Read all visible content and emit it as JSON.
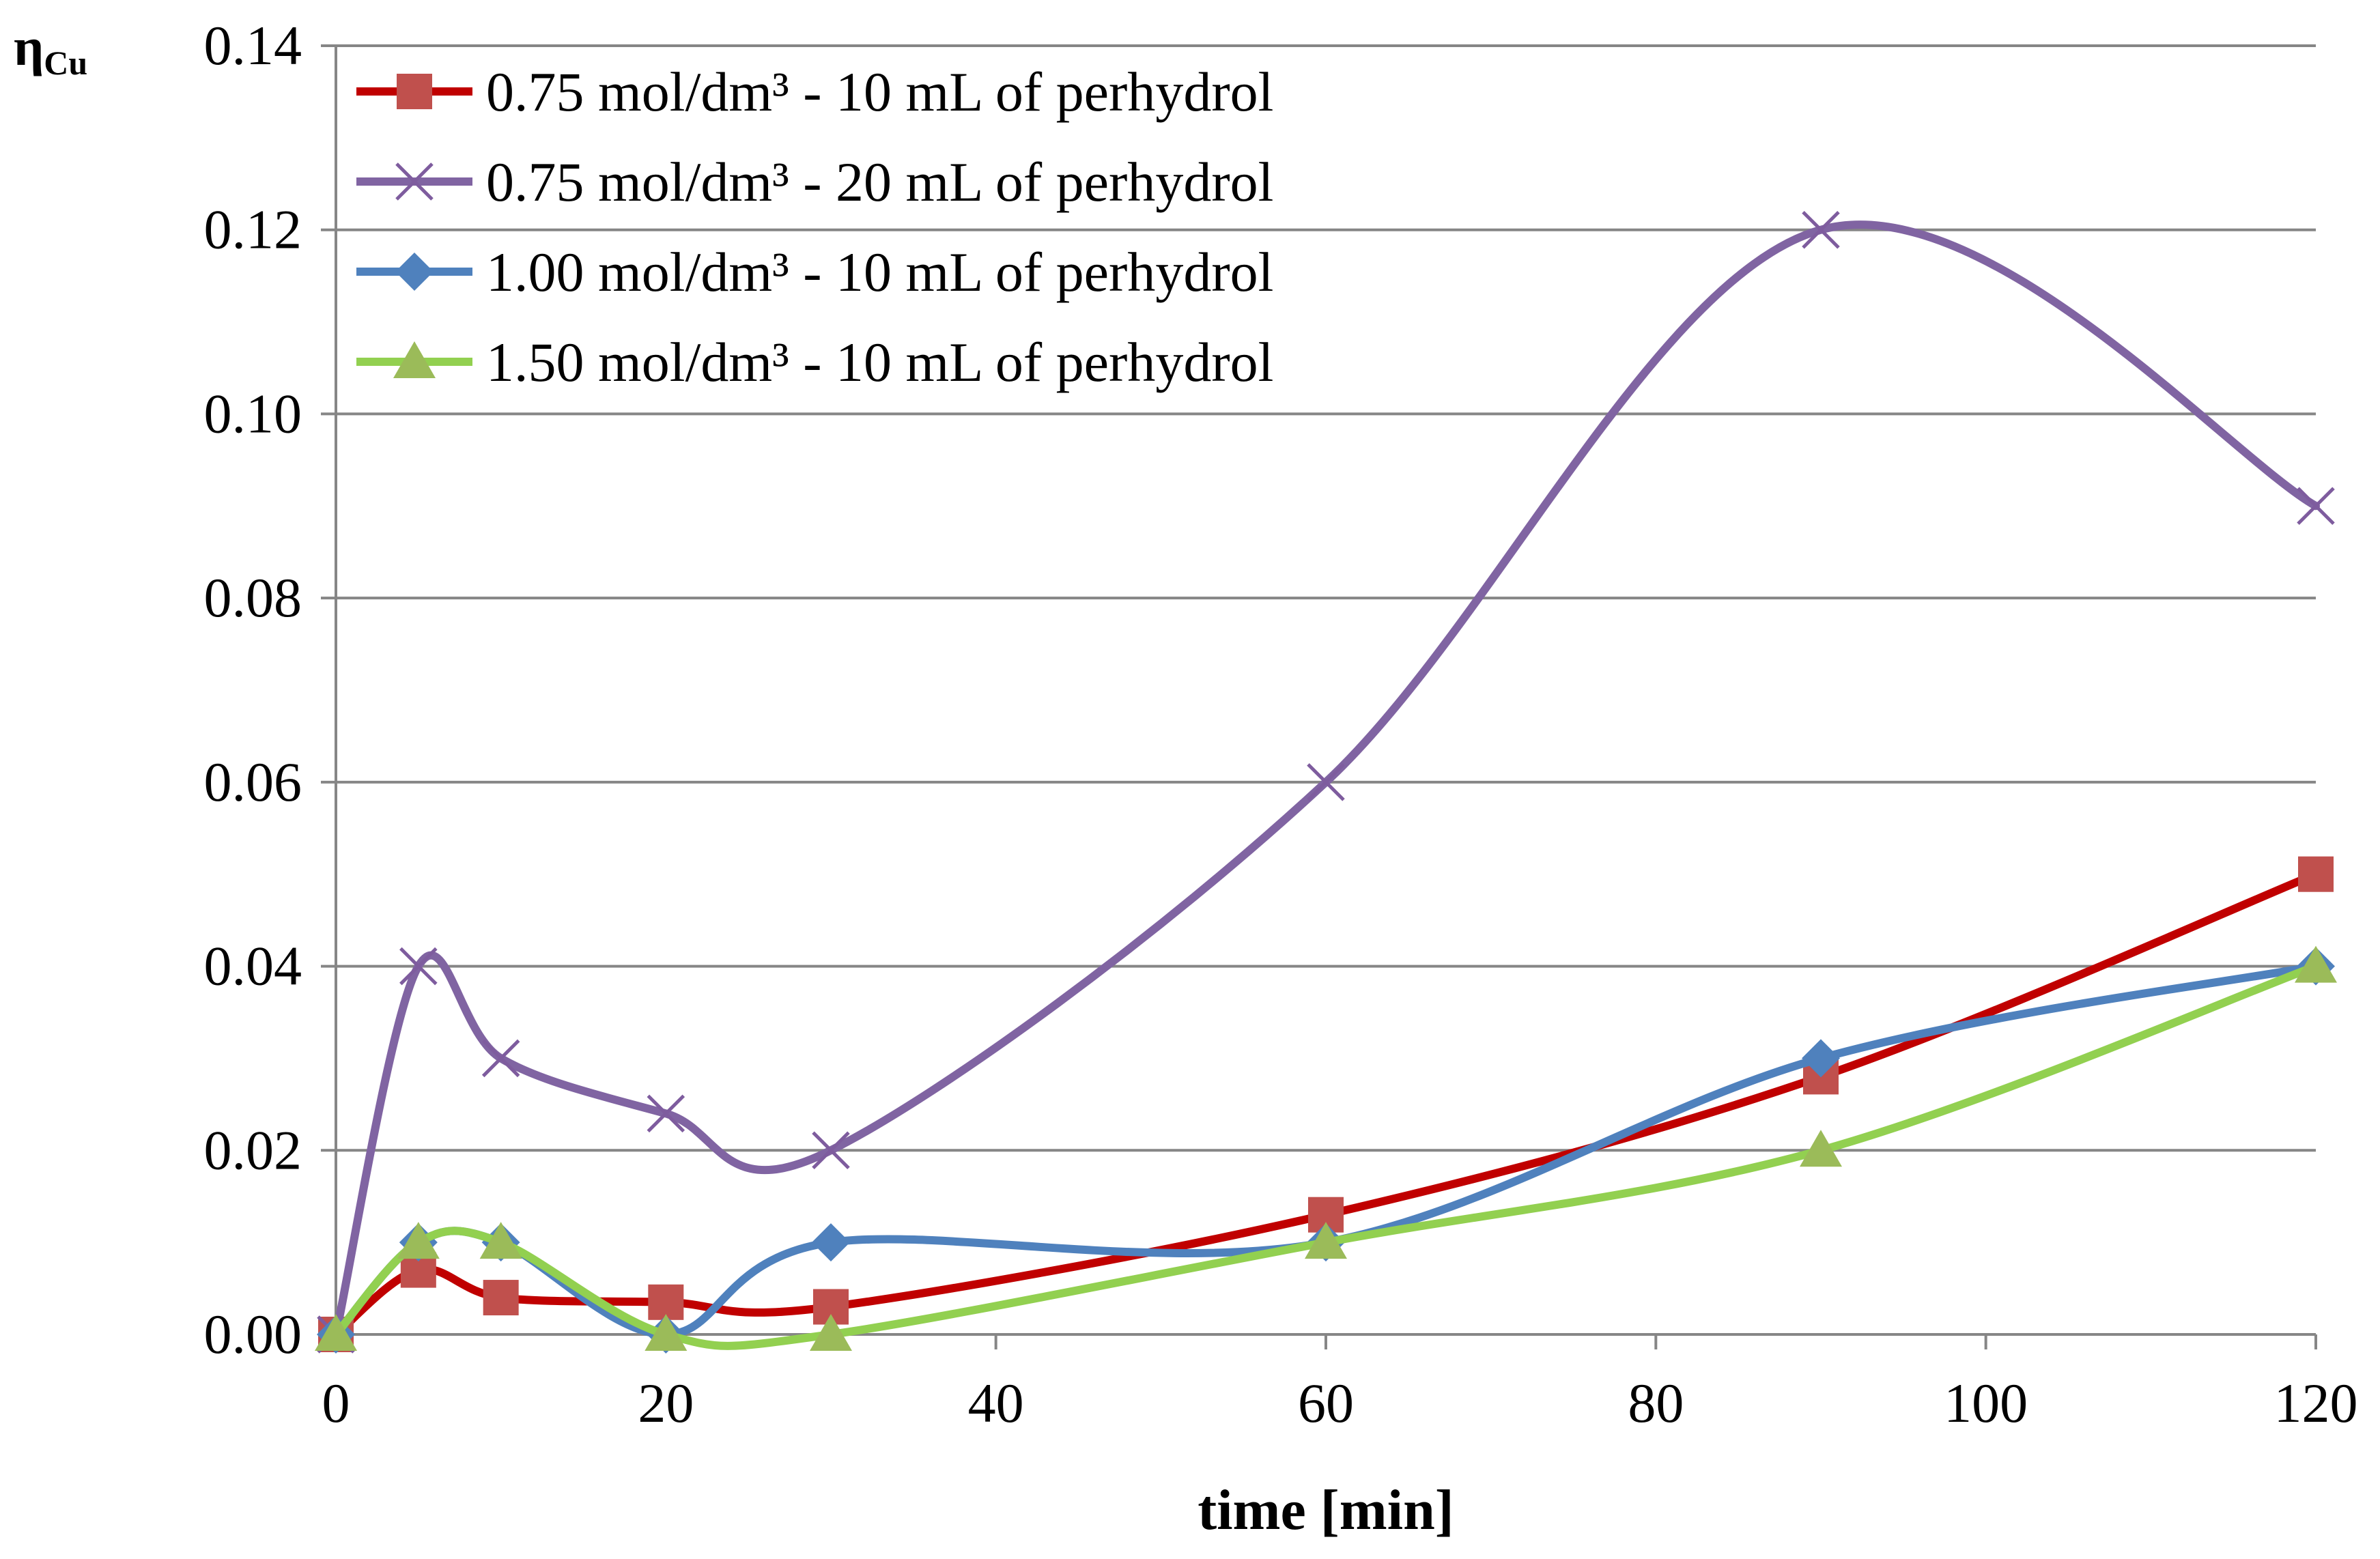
{
  "chart_data": {
    "type": "line",
    "smoothed": true,
    "title": "",
    "xlabel": "time [min]",
    "ylabel_main": "η",
    "ylabel_sub": "Cu",
    "xlim": [
      0,
      120
    ],
    "ylim": [
      0,
      0.14
    ],
    "xticks": [
      0,
      20,
      40,
      60,
      80,
      100,
      120
    ],
    "yticks": [
      0.0,
      0.02,
      0.04,
      0.06,
      0.08,
      0.1,
      0.12,
      0.14
    ],
    "ytick_labels": [
      "0.00",
      "0.02",
      "0.04",
      "0.06",
      "0.08",
      "0.10",
      "0.12",
      "0.14"
    ],
    "xtick_labels": [
      "0",
      "20",
      "40",
      "60",
      "80",
      "100",
      "120"
    ],
    "grid": "horizontal",
    "legend_position": "top-left",
    "series": [
      {
        "name": "0.75 mol/dm³ - 10 mL of perhydrol",
        "line_color": "#C00000",
        "marker": "square",
        "marker_color": "#C0504D",
        "x": [
          0,
          5,
          10,
          20,
          30,
          60,
          90,
          120
        ],
        "values": [
          0.0,
          0.007,
          0.004,
          0.0035,
          0.003,
          0.013,
          0.028,
          0.05
        ]
      },
      {
        "name": "0.75 mol/dm³ - 20 mL of perhydrol",
        "line_color": "#8064A2",
        "marker": "x",
        "marker_color": "#7E5C9E",
        "x": [
          0,
          5,
          10,
          20,
          30,
          60,
          90,
          120
        ],
        "values": [
          0.0,
          0.04,
          0.03,
          0.024,
          0.02,
          0.06,
          0.12,
          0.09
        ]
      },
      {
        "name": "1.00 mol/dm³ - 10 mL of perhydrol",
        "line_color": "#4F81BD",
        "marker": "diamond",
        "marker_color": "#4F81BD",
        "x": [
          0,
          5,
          10,
          20,
          30,
          60,
          90,
          120
        ],
        "values": [
          0.0,
          0.01,
          0.01,
          0.0,
          0.01,
          0.01,
          0.03,
          0.04
        ]
      },
      {
        "name": "1.50 mol/dm³ - 10 mL of perhydrol",
        "line_color": "#92D050",
        "marker": "triangle",
        "marker_color": "#9BBB59",
        "x": [
          0,
          5,
          10,
          20,
          30,
          60,
          90,
          120
        ],
        "values": [
          0.0,
          0.01,
          0.01,
          0.0,
          0.0,
          0.01,
          0.02,
          0.04
        ]
      }
    ]
  }
}
